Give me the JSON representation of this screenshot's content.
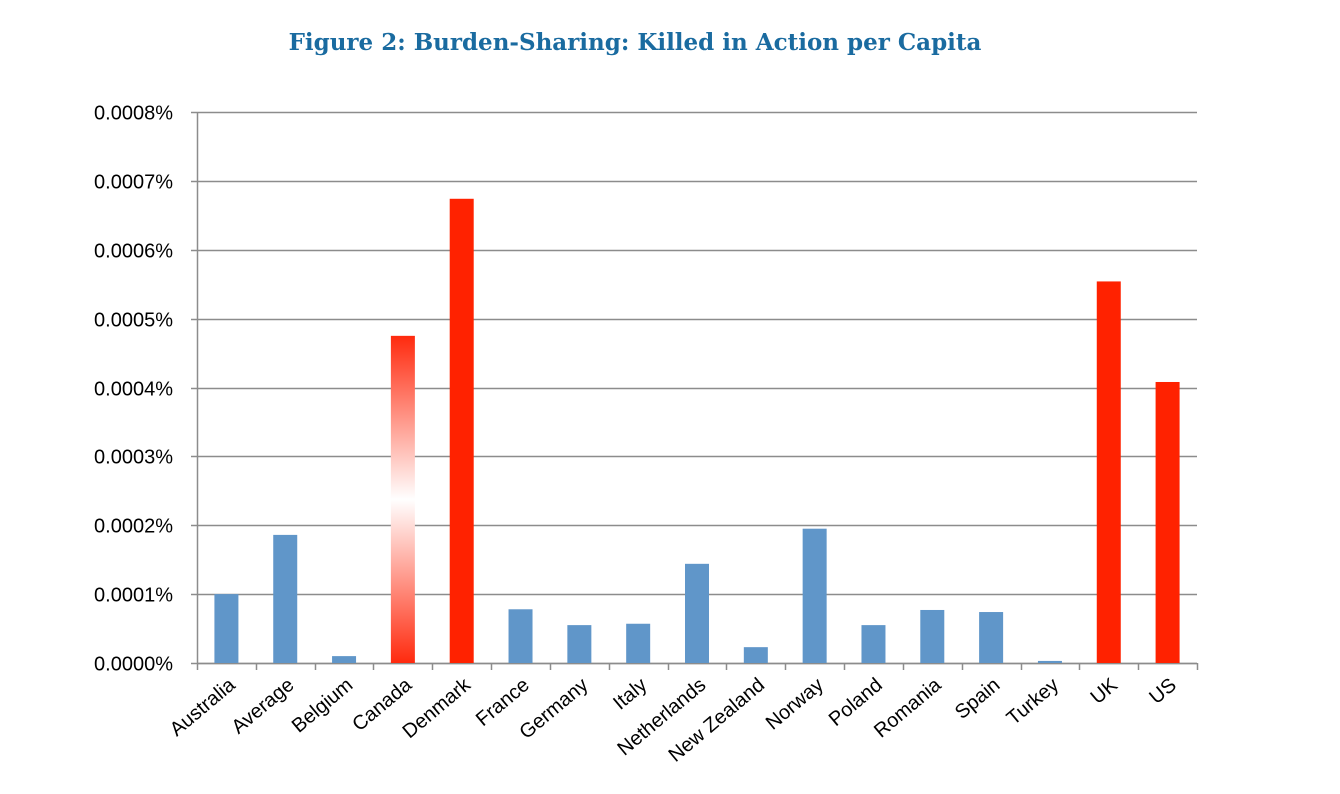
{
  "figure": {
    "title": "Figure 2: Burden-Sharing: Killed in Action per Capita"
  },
  "colors": {
    "title": "#1a6ba0",
    "blue_bar": "#6096c9",
    "red_bar": "#ff2200",
    "grid": "#8c8c8c",
    "axis": "#8c8c8c"
  },
  "chart_data": {
    "type": "bar",
    "title": "Figure 2: Burden-Sharing: Killed in Action per Capita",
    "xlabel": "",
    "ylabel": "",
    "ylim": [
      0,
      0.0008
    ],
    "y_ticks": [
      "0.0000%",
      "0.0001%",
      "0.0002%",
      "0.0003%",
      "0.0004%",
      "0.0005%",
      "0.0006%",
      "0.0007%",
      "0.0008%"
    ],
    "y_tick_values": [
      0,
      0.0001,
      0.0002,
      0.0003,
      0.0004,
      0.0005,
      0.0006,
      0.0007,
      0.0008
    ],
    "grid": true,
    "categories": [
      "Australia",
      "Average",
      "Belgium",
      "Canada",
      "Denmark",
      "France",
      "Germany",
      "Italy",
      "Netherlands",
      "New Zealand",
      "Norway",
      "Poland",
      "Romania",
      "Spain",
      "Turkey",
      "UK",
      "US"
    ],
    "values": [
      0.0001,
      0.000186,
      1e-05,
      0.000475,
      0.000674,
      7.8e-05,
      5.5e-05,
      5.7e-05,
      0.000144,
      2.3e-05,
      0.000195,
      5.5e-05,
      7.7e-05,
      7.4e-05,
      3e-06,
      0.000554,
      0.000408
    ],
    "bar_styles": [
      "blue",
      "blue",
      "blue",
      "gradient-red",
      "red",
      "blue",
      "blue",
      "blue",
      "blue",
      "blue",
      "blue",
      "blue",
      "blue",
      "blue",
      "blue",
      "red",
      "red"
    ]
  }
}
